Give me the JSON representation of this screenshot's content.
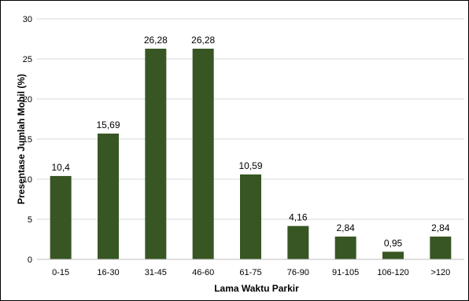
{
  "chart_data": {
    "type": "bar",
    "categories": [
      "0-15",
      "16-30",
      "31-45",
      "46-60",
      "61-75",
      "76-90",
      "91-105",
      "106-120",
      ">120"
    ],
    "values": [
      10.4,
      15.69,
      26.28,
      26.28,
      10.59,
      4.16,
      2.84,
      0.95,
      2.84
    ],
    "data_labels": [
      "10,4",
      "15,69",
      "26,28",
      "26,28",
      "10,59",
      "4,16",
      "2,84",
      "0,95",
      "2,84"
    ],
    "title": "",
    "xlabel": "Lama Waktu Parkir",
    "ylabel": "Presentase Jumlah Mobil (%)",
    "ylim": [
      0,
      30
    ],
    "yticks": [
      0,
      5,
      10,
      15,
      20,
      25,
      30
    ],
    "grid": true,
    "legend": "none",
    "bar_color": "#375623"
  }
}
